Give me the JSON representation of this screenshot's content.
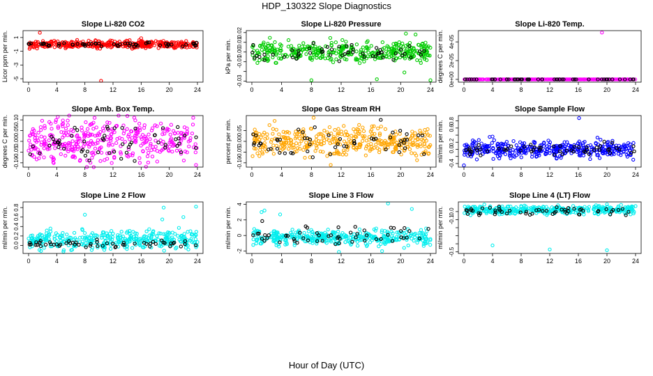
{
  "figure": {
    "title": "HDP_130322  Slope Diagnostics",
    "xlabel": "Hour of Day (UTC)"
  },
  "chart_data": [
    {
      "type": "scatter",
      "title": "Slope Li-820 CO2",
      "ylabel": "Licor ppm per min.",
      "xlim": [
        0,
        24
      ],
      "xticks": [
        0,
        4,
        8,
        12,
        16,
        20,
        24
      ],
      "ylim": [
        -5.5,
        2
      ],
      "yticks": [
        -5,
        -3,
        -1,
        1
      ],
      "ytick_labels": [
        "-5",
        "-3",
        "-1",
        "1"
      ],
      "color": "#ff0000",
      "center": 0,
      "spread": 0.25,
      "outliers": [
        {
          "x": 1.6,
          "y": 1.7
        },
        {
          "x": 1.2,
          "y": -0.6
        },
        {
          "x": 10.3,
          "y": -5.3
        },
        {
          "x": 16.0,
          "y": 0.9
        },
        {
          "x": 9.5,
          "y": 0.6
        }
      ],
      "black_center": 0,
      "black_spread": 0.15
    },
    {
      "type": "scatter",
      "title": "Slope Li-820 Pressure",
      "ylabel": "kPa per min.",
      "xlim": [
        0,
        24
      ],
      "xticks": [
        0,
        4,
        8,
        12,
        16,
        20,
        24
      ],
      "ylim": [
        -0.031,
        0.022
      ],
      "yticks": [
        -0.03,
        -0.02,
        -0.01,
        0.0,
        0.01,
        0.02
      ],
      "ytick_labels": [
        "-0.03",
        "",
        "-0.01",
        "0.00",
        "0.01",
        "0.02"
      ],
      "color": "#00cc00",
      "center": 0.0,
      "spread": 0.005,
      "outliers": [
        {
          "x": 8.0,
          "y": -0.029
        },
        {
          "x": 16.8,
          "y": -0.028
        },
        {
          "x": 24.0,
          "y": -0.029
        },
        {
          "x": 20.7,
          "y": 0.019
        },
        {
          "x": 20.5,
          "y": -0.021
        },
        {
          "x": 22.0,
          "y": 0.018
        }
      ],
      "black_center": 0.0,
      "black_spread": 0.004
    },
    {
      "type": "scatter",
      "title": "Slope Li-820 Temp.",
      "ylabel": "degrees C per min.",
      "xlim": [
        0,
        24
      ],
      "xticks": [
        0,
        4,
        8,
        12,
        16,
        20,
        24
      ],
      "ylim": [
        -3e-06,
        5.2e-05
      ],
      "yticks": [
        0,
        2e-05,
        4e-05
      ],
      "ytick_labels": [
        "0e+00",
        "2e-05",
        "4e-05"
      ],
      "color": "#ff00ff",
      "center": 0,
      "spread": 0,
      "outliers": [
        {
          "x": 19.3,
          "y": 5e-05
        }
      ],
      "black_center": 0,
      "black_spread": 0
    },
    {
      "type": "scatter",
      "title": "Slope Amb. Box Temp.",
      "ylabel": "degrees C per min.",
      "xlim": [
        0,
        24
      ],
      "xticks": [
        0,
        4,
        8,
        12,
        16,
        20,
        24
      ],
      "ylim": [
        -0.12,
        0.12
      ],
      "yticks": [
        -0.1,
        -0.05,
        0.0,
        0.05,
        0.1
      ],
      "ytick_labels": [
        "-0.10",
        "-0.05",
        "0.00",
        "0.05",
        "0.10"
      ],
      "color": "#ff00ff",
      "center": 0.0,
      "spread": 0.05,
      "outliers": [
        {
          "x": 23.8,
          "y": -0.11
        },
        {
          "x": 23.4,
          "y": 0.11
        }
      ],
      "black_center": 0.0,
      "black_spread": 0.04
    },
    {
      "type": "scatter",
      "title": "Slope Gas Stream RH",
      "ylabel": "percent per min.",
      "xlim": [
        0,
        24
      ],
      "xticks": [
        0,
        4,
        8,
        12,
        16,
        20,
        24
      ],
      "ylim": [
        -0.12,
        0.12
      ],
      "yticks": [
        -0.1,
        -0.05,
        0.0,
        0.05
      ],
      "ytick_labels": [
        "-0.10",
        "-0.05",
        "0.00",
        "0.05"
      ],
      "color": "#ffa500",
      "center": 0.0,
      "spread": 0.035,
      "outliers": [
        {
          "x": 8.3,
          "y": 0.11
        },
        {
          "x": 10.6,
          "y": -0.11
        }
      ],
      "black_center": 0.0,
      "black_spread": 0.035
    },
    {
      "type": "scatter",
      "title": "Slope Sample Flow",
      "ylabel": "ml/min per min.",
      "xlim": [
        0,
        24
      ],
      "xticks": [
        0,
        4,
        8,
        12,
        16,
        20,
        24
      ],
      "ylim": [
        -0.5,
        0.95
      ],
      "yticks": [
        -0.4,
        -0.2,
        0.0,
        0.2,
        0.4,
        0.6,
        0.8
      ],
      "ytick_labels": [
        "-0.4",
        "",
        "0.0",
        "0.2",
        "",
        "0.6",
        "0.8"
      ],
      "color": "#0000ff",
      "center": 0.0,
      "spread": 0.12,
      "outliers": [
        {
          "x": 16.1,
          "y": 0.88
        },
        {
          "x": 0.0,
          "y": -0.45
        },
        {
          "x": 3.6,
          "y": 0.35
        },
        {
          "x": 4.0,
          "y": 0.36
        }
      ],
      "black_center": 0.0,
      "black_spread": 0.08
    },
    {
      "type": "scatter",
      "title": "Slope Line 2 Flow",
      "ylabel": "ml/min per min.",
      "xlim": [
        0,
        24
      ],
      "xticks": [
        0,
        4,
        8,
        12,
        16,
        20,
        24
      ],
      "ylim": [
        -0.17,
        0.92
      ],
      "yticks": [
        0.0,
        0.2,
        0.4,
        0.6,
        0.8
      ],
      "ytick_labels": [
        "0.0",
        "0.2",
        "0.4",
        "0.6",
        "0.8"
      ],
      "color": "#00eeee",
      "center": 0.12,
      "spread": 0.1,
      "outliers": [
        {
          "x": 8.0,
          "y": 0.65
        },
        {
          "x": 19.2,
          "y": 0.8
        },
        {
          "x": 23.8,
          "y": 0.82
        },
        {
          "x": 22.0,
          "y": 0.6
        },
        {
          "x": 19.0,
          "y": 0.55
        }
      ],
      "black_center": 0.03,
      "black_spread": 0.04
    },
    {
      "type": "scatter",
      "title": "Slope Line 3 Flow",
      "ylabel": "ml/min per min.",
      "xlim": [
        0,
        24
      ],
      "xticks": [
        0,
        4,
        8,
        12,
        16,
        20,
        24
      ],
      "ylim": [
        -2.3,
        4.3
      ],
      "yticks": [
        -2,
        0,
        2,
        4
      ],
      "ytick_labels": [
        "-2",
        "0",
        "2",
        "4"
      ],
      "color": "#00eeee",
      "center": -0.2,
      "spread": 0.5,
      "outliers": [
        {
          "x": 1.3,
          "y": 3.0
        },
        {
          "x": 1.7,
          "y": 3.2
        },
        {
          "x": 3.8,
          "y": 2.7
        },
        {
          "x": 18.3,
          "y": 4.1
        },
        {
          "x": 21.5,
          "y": 3.4
        },
        {
          "x": 11.7,
          "y": -2.1
        },
        {
          "x": 17.5,
          "y": -2.0
        }
      ],
      "black_center": 0.1,
      "black_spread": 0.6
    },
    {
      "type": "scatter",
      "title": "Slope Line 4 (LT) Flow",
      "ylabel": "ml/min per min.",
      "xlim": [
        0,
        24
      ],
      "xticks": [
        0,
        4,
        8,
        12,
        16,
        20,
        24
      ],
      "ylim": [
        -0.52,
        0.12
      ],
      "yticks": [
        -0.5,
        -0.4,
        -0.3,
        -0.2,
        -0.1,
        0.0
      ],
      "ytick_labels": [
        "-0.5",
        "",
        "",
        "",
        "-0.1",
        "0.0"
      ],
      "color": "#00eeee",
      "center": 0.02,
      "spread": 0.025,
      "outliers": [
        {
          "x": 4.0,
          "y": -0.42
        },
        {
          "x": 12.0,
          "y": -0.47
        },
        {
          "x": 20.0,
          "y": -0.48
        },
        {
          "x": 20.0,
          "y": 0.09
        }
      ],
      "black_center": 0.0,
      "black_spread": 0.03
    }
  ]
}
